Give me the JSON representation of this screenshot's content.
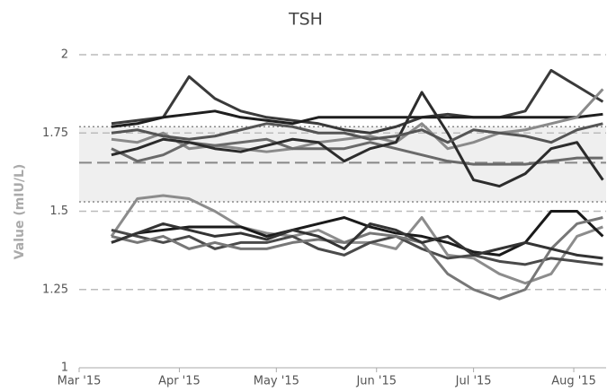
{
  "chart_data": {
    "type": "line",
    "title": "TSH",
    "ylabel": "Value (mIU/L)",
    "xlim": [
      0,
      163
    ],
    "xticks": [
      {
        "value": 0,
        "label": "Mar '15"
      },
      {
        "value": 31,
        "label": "Apr '15"
      },
      {
        "value": 61,
        "label": "May '15"
      },
      {
        "value": 92,
        "label": "Jun '15"
      },
      {
        "value": 122,
        "label": "Jul '15"
      },
      {
        "value": 153,
        "label": "Aug '15"
      }
    ],
    "ylim": [
      1,
      2
    ],
    "yticks": [
      1,
      1.25,
      1.5,
      1.75,
      2
    ],
    "grid": true,
    "reference_band": [
      1.53,
      1.77
    ],
    "reference_mean": 1.655,
    "x": [
      10,
      18,
      26,
      34,
      42,
      50,
      58,
      66,
      74,
      82,
      90,
      98,
      106,
      114,
      122,
      130,
      138,
      146,
      154,
      162
    ],
    "series": [
      {
        "color": "#3a3a3a",
        "values": [
          1.78,
          1.79,
          1.8,
          1.93,
          1.86,
          1.82,
          1.8,
          1.79,
          1.78,
          1.76,
          1.75,
          1.77,
          1.8,
          1.81,
          1.8,
          1.8,
          1.82,
          1.95,
          1.9,
          1.85
        ]
      },
      {
        "color": "#1e1e1e",
        "values": [
          1.77,
          1.78,
          1.8,
          1.81,
          1.82,
          1.8,
          1.79,
          1.78,
          1.8,
          1.8,
          1.8,
          1.8,
          1.8,
          1.8,
          1.8,
          1.8,
          1.8,
          1.8,
          1.8,
          1.81
        ]
      },
      {
        "color": "#8a8a8a",
        "values": [
          1.73,
          1.72,
          1.75,
          1.7,
          1.71,
          1.7,
          1.69,
          1.7,
          1.72,
          1.73,
          1.74,
          1.72,
          1.78,
          1.7,
          1.72,
          1.75,
          1.76,
          1.78,
          1.8,
          1.89
        ]
      },
      {
        "color": "#6a6a6a",
        "values": [
          1.7,
          1.66,
          1.68,
          1.72,
          1.71,
          1.72,
          1.73,
          1.7,
          1.7,
          1.7,
          1.72,
          1.7,
          1.68,
          1.66,
          1.65,
          1.65,
          1.65,
          1.66,
          1.67,
          1.67
        ]
      },
      {
        "color": "#2c2c2c",
        "values": [
          1.68,
          1.7,
          1.73,
          1.72,
          1.7,
          1.69,
          1.71,
          1.73,
          1.72,
          1.66,
          1.7,
          1.72,
          1.88,
          1.75,
          1.6,
          1.58,
          1.62,
          1.7,
          1.72,
          1.6
        ]
      },
      {
        "color": "#555555",
        "values": [
          1.75,
          1.76,
          1.74,
          1.73,
          1.74,
          1.76,
          1.78,
          1.77,
          1.75,
          1.75,
          1.73,
          1.74,
          1.76,
          1.72,
          1.76,
          1.75,
          1.74,
          1.72,
          1.76,
          1.78
        ]
      },
      {
        "color": "#8c8c8c",
        "values": [
          1.42,
          1.54,
          1.55,
          1.54,
          1.5,
          1.45,
          1.43,
          1.42,
          1.44,
          1.4,
          1.4,
          1.38,
          1.48,
          1.36,
          1.35,
          1.3,
          1.27,
          1.3,
          1.42,
          1.45
        ]
      },
      {
        "color": "#1a1a1a",
        "values": [
          1.4,
          1.43,
          1.44,
          1.45,
          1.45,
          1.45,
          1.42,
          1.44,
          1.46,
          1.48,
          1.45,
          1.43,
          1.42,
          1.4,
          1.37,
          1.36,
          1.4,
          1.5,
          1.5,
          1.42
        ]
      },
      {
        "color": "#4a4a4a",
        "values": [
          1.44,
          1.42,
          1.4,
          1.42,
          1.38,
          1.4,
          1.4,
          1.42,
          1.38,
          1.36,
          1.4,
          1.42,
          1.38,
          1.35,
          1.36,
          1.34,
          1.33,
          1.35,
          1.34,
          1.33
        ]
      },
      {
        "color": "#777777",
        "values": [
          1.42,
          1.4,
          1.42,
          1.38,
          1.4,
          1.38,
          1.38,
          1.4,
          1.41,
          1.4,
          1.43,
          1.42,
          1.4,
          1.3,
          1.25,
          1.22,
          1.25,
          1.38,
          1.46,
          1.48
        ]
      },
      {
        "color": "#333333",
        "values": [
          1.4,
          1.43,
          1.46,
          1.44,
          1.42,
          1.43,
          1.41,
          1.44,
          1.42,
          1.38,
          1.46,
          1.44,
          1.4,
          1.42,
          1.36,
          1.38,
          1.4,
          1.38,
          1.36,
          1.35
        ]
      }
    ]
  }
}
